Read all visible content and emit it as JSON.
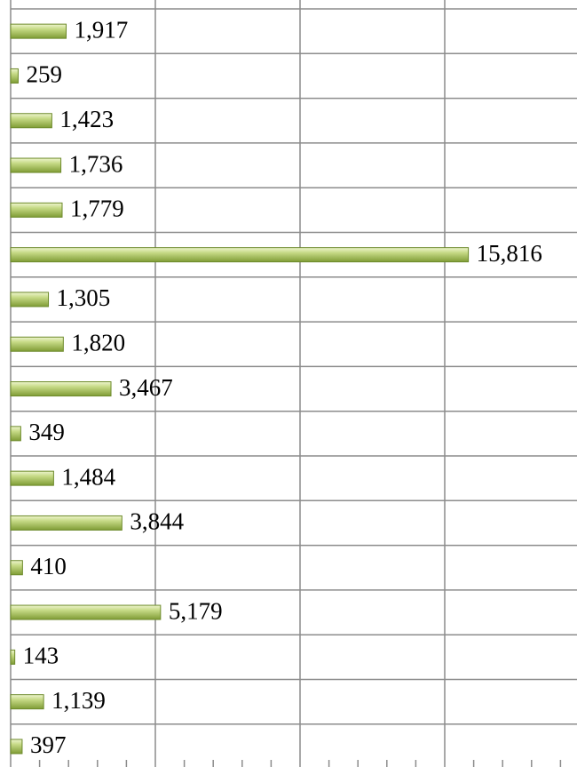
{
  "chart_data": {
    "type": "bar",
    "orientation": "horizontal",
    "values": [
      1917,
      259,
      1423,
      1736,
      1779,
      15816,
      1305,
      1820,
      3467,
      349,
      1484,
      3844,
      410,
      5179,
      143,
      1139,
      397
    ],
    "value_labels": [
      "1,917",
      "259",
      "1,423",
      "1,736",
      "1,779",
      "15,816",
      "1,305",
      "1,820",
      "3,467",
      "349",
      "1,484",
      "3,844",
      "410",
      "5,179",
      "143",
      "1,139",
      "397"
    ],
    "color": "#9bbb59",
    "xlim": [
      0,
      20000
    ],
    "xticks": [
      0,
      5000,
      10000,
      15000,
      20000
    ],
    "minor_xticks": [
      1000,
      2000,
      3000,
      4000,
      6000,
      7000,
      8000,
      9000,
      11000,
      12000,
      13000,
      14000,
      16000,
      17000,
      18000,
      19000
    ],
    "grid": true
  }
}
